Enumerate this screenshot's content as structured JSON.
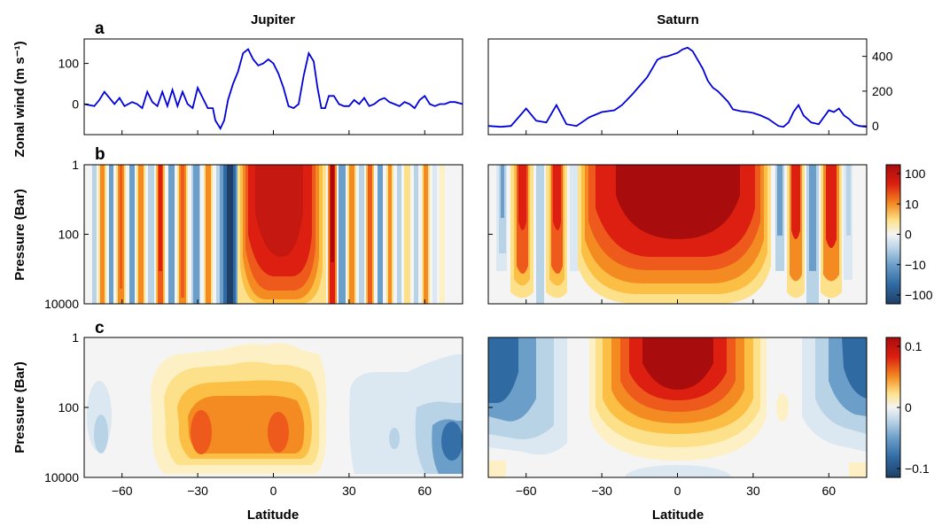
{
  "colors": {
    "wind_line": "#0000dd",
    "neg_strong": "#1f3f66",
    "neg_mid": "#2f6aa3",
    "neg_weak": "#6b9ec9",
    "neg_light": "#b9d3e6",
    "neg_faint": "#dbe8f1",
    "neutral": "#f4f4f4",
    "pos_faint": "#fdf0c4",
    "pos_light": "#fde18a",
    "pos_weak": "#fbbf45",
    "pos_mid": "#f48b22",
    "pos_orange_red": "#ee5a1c",
    "pos_strong": "#dc1f10",
    "pos_max": "#a80c0c"
  },
  "figure": {
    "titles": {
      "jupiter": "Jupiter",
      "saturn": "Saturn"
    },
    "panel_letters": {
      "a": "a",
      "b": "b",
      "c": "c"
    },
    "ylabels": {
      "a": "Zonal wind (m s⁻¹)",
      "b": "Pressure (Bar)",
      "c": "Pressure (Bar)"
    },
    "xlabel": "Latitude",
    "pressure_ticks": [
      "1",
      "100",
      "10000"
    ],
    "colorbar_b_ticks": [
      "100",
      "10",
      "0",
      "−10",
      "−100"
    ],
    "colorbar_c_ticks": [
      "0.1",
      "0",
      "−0.1"
    ]
  },
  "chart_data": [
    {
      "type": "line",
      "panel": "a",
      "title": "Jupiter",
      "xlabel": "",
      "ylabel": "Zonal wind (m s⁻¹)",
      "xlim": [
        -75,
        75
      ],
      "ylim": [
        -75,
        160
      ],
      "yticks": [
        0,
        100
      ],
      "ytick_labels": [
        "0",
        "100"
      ],
      "xticks": [
        -60,
        -30,
        0,
        30,
        60
      ],
      "series": [
        {
          "x": [
            -75,
            -71,
            -69,
            -67,
            -65,
            -63,
            -61,
            -59,
            -56,
            -54,
            -52,
            -50,
            -48,
            -46,
            -44,
            -42,
            -40,
            -38,
            -36,
            -34,
            -32,
            -30,
            -28,
            -26,
            -24,
            -23,
            -21,
            -19.5,
            -18,
            -16,
            -14,
            -12,
            -10,
            -8,
            -6,
            -4,
            -2,
            0,
            2,
            4,
            6,
            8,
            10,
            12,
            14,
            16,
            17.5,
            19,
            20.5,
            22,
            24,
            26,
            28,
            30,
            32,
            34,
            36,
            38,
            40,
            42,
            44,
            46,
            48,
            50,
            52,
            54,
            56,
            58,
            60,
            62,
            64,
            66,
            68,
            70,
            72,
            75
          ],
          "y": [
            0,
            -5,
            10,
            30,
            15,
            0,
            15,
            -5,
            5,
            0,
            -10,
            30,
            5,
            -5,
            30,
            -5,
            35,
            -5,
            30,
            0,
            -10,
            40,
            15,
            -10,
            -10,
            -40,
            -60,
            -40,
            10,
            50,
            80,
            125,
            135,
            110,
            95,
            100,
            110,
            100,
            75,
            40,
            -5,
            -10,
            0,
            70,
            125,
            105,
            40,
            -10,
            -10,
            20,
            20,
            0,
            -5,
            -5,
            10,
            0,
            15,
            -5,
            0,
            10,
            15,
            5,
            0,
            -5,
            5,
            0,
            -10,
            10,
            20,
            0,
            -5,
            0,
            0,
            5,
            5,
            0
          ]
        }
      ]
    },
    {
      "type": "line",
      "panel": "a",
      "title": "Saturn",
      "xlabel": "",
      "ylabel": "",
      "xlim": [
        -75,
        75
      ],
      "ylim": [
        -50,
        500
      ],
      "yticks": [
        0,
        200,
        400
      ],
      "ytick_labels": [
        "0",
        "200",
        "400"
      ],
      "xticks": [
        -60,
        -30,
        0,
        30,
        60
      ],
      "series": [
        {
          "x": [
            -75,
            -70,
            -66,
            -63,
            -60,
            -56,
            -52,
            -48,
            -44,
            -40,
            -35,
            -30,
            -25,
            -22,
            -18,
            -15,
            -12,
            -10,
            -8,
            -6,
            -4,
            -2,
            0,
            2,
            4,
            6,
            8,
            10,
            12,
            14,
            16,
            18,
            20,
            22,
            25,
            28,
            30,
            33,
            36,
            40,
            42,
            44,
            46,
            48,
            50,
            53,
            56,
            58,
            60,
            62,
            64,
            66,
            68,
            70,
            72,
            75
          ],
          "y": [
            0,
            -5,
            0,
            50,
            100,
            30,
            20,
            120,
            10,
            0,
            50,
            80,
            90,
            120,
            180,
            230,
            280,
            330,
            380,
            395,
            400,
            410,
            420,
            440,
            450,
            430,
            380,
            330,
            260,
            220,
            200,
            170,
            140,
            95,
            85,
            80,
            75,
            60,
            40,
            0,
            -5,
            20,
            80,
            120,
            60,
            20,
            10,
            50,
            90,
            80,
            100,
            60,
            40,
            10,
            0,
            -5
          ]
        }
      ]
    },
    {
      "type": "heatmap",
      "panel": "b",
      "title": "Jupiter",
      "xlabel": "",
      "ylabel": "Pressure (Bar)",
      "xlim": [
        -75,
        75
      ],
      "ylim": [
        1,
        10000
      ],
      "y_scale": "log",
      "yticks": [
        "1",
        "100",
        "10000"
      ],
      "colorbar_ticks": [
        100,
        10,
        0,
        -10,
        -100
      ]
    },
    {
      "type": "heatmap",
      "panel": "b",
      "title": "Saturn",
      "xlabel": "",
      "ylabel": "",
      "xlim": [
        -75,
        75
      ],
      "ylim": [
        1,
        10000
      ],
      "y_scale": "log"
    },
    {
      "type": "heatmap",
      "panel": "c",
      "title": "Jupiter",
      "xlabel": "Latitude",
      "ylabel": "Pressure (Bar)",
      "xlim": [
        -75,
        75
      ],
      "ylim": [
        1,
        10000
      ],
      "y_scale": "log",
      "xticks": [
        -60,
        -30,
        0,
        30,
        60
      ],
      "xtick_labels": [
        "−60",
        "−30",
        "0",
        "30",
        "60"
      ],
      "colorbar_ticks": [
        0.1,
        0,
        -0.1
      ]
    },
    {
      "type": "heatmap",
      "panel": "c",
      "title": "Saturn",
      "xlabel": "Latitude",
      "ylabel": "",
      "xlim": [
        -75,
        75
      ],
      "ylim": [
        1,
        10000
      ],
      "y_scale": "log",
      "xticks": [
        -60,
        -30,
        0,
        30,
        60
      ],
      "xtick_labels": [
        "−60",
        "−30",
        "0",
        "30",
        "60"
      ]
    }
  ]
}
